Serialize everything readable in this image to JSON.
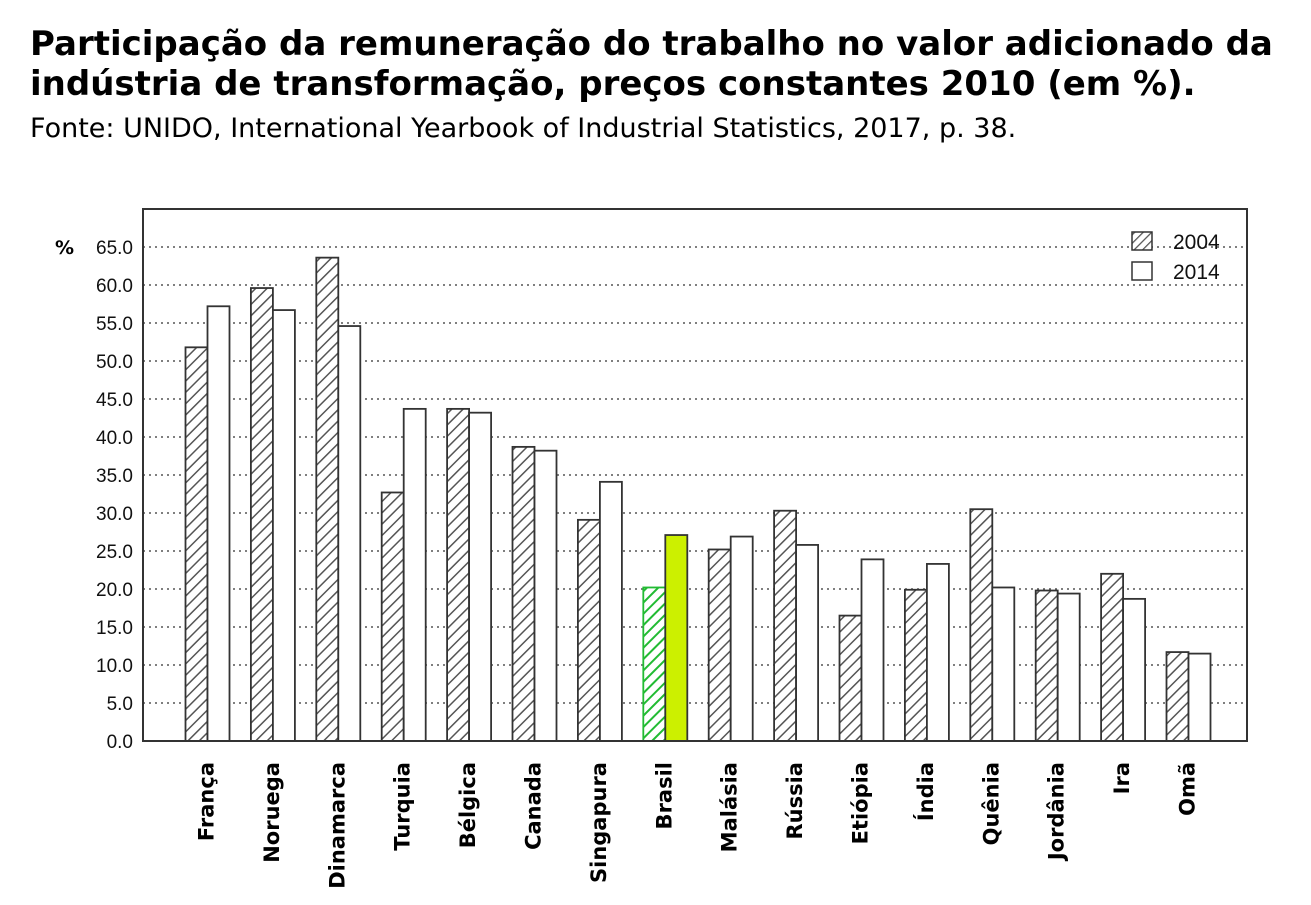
{
  "header": {
    "title": "Participação da remuneração do trabalho no valor adicionado da indústria de transformação, preços constantes 2010 (em %).",
    "source": "Fonte: UNIDO, International Yearbook of Industrial Statistics, 2017, p. 38."
  },
  "chart_data": {
    "type": "bar",
    "title": "Participação da remuneração do trabalho no valor adicionado da indústria de transformação, preços constantes 2010 (em %).",
    "ylabel": "%",
    "xlabel": "",
    "ylim": [
      0,
      70
    ],
    "yticks": [
      "0.0",
      "5.0",
      "10.0",
      "15.0",
      "20.0",
      "25.0",
      "30.0",
      "35.0",
      "40.0",
      "45.0",
      "50.0",
      "55.0",
      "60.0",
      "65.0"
    ],
    "grid": true,
    "legend_position": "top-right",
    "categories": [
      "França",
      "Noruega",
      "Dinamarca",
      "Turquia",
      "Bélgica",
      "Canada",
      "Singapura",
      "Brasil",
      "Malásia",
      "Rússia",
      "Etiópia",
      "Índia",
      "Quênia",
      "Jordânia",
      "Ira",
      "Omã"
    ],
    "highlight_category": "Brasil",
    "series": [
      {
        "name": "2004",
        "pattern": "hatched",
        "color": "#ffffff",
        "highlight_color": "#22bb33",
        "values": [
          51.8,
          59.6,
          63.6,
          32.7,
          43.7,
          38.7,
          29.1,
          20.2,
          25.2,
          30.3,
          16.5,
          19.9,
          30.5,
          19.8,
          22.0,
          11.7
        ]
      },
      {
        "name": "2014",
        "pattern": "solid",
        "color": "#ffffff",
        "highlight_color": "#ccf000",
        "values": [
          57.2,
          56.7,
          54.6,
          43.7,
          43.2,
          38.2,
          34.1,
          27.1,
          26.9,
          25.8,
          23.9,
          23.3,
          20.2,
          19.4,
          18.7,
          11.5
        ]
      }
    ]
  }
}
